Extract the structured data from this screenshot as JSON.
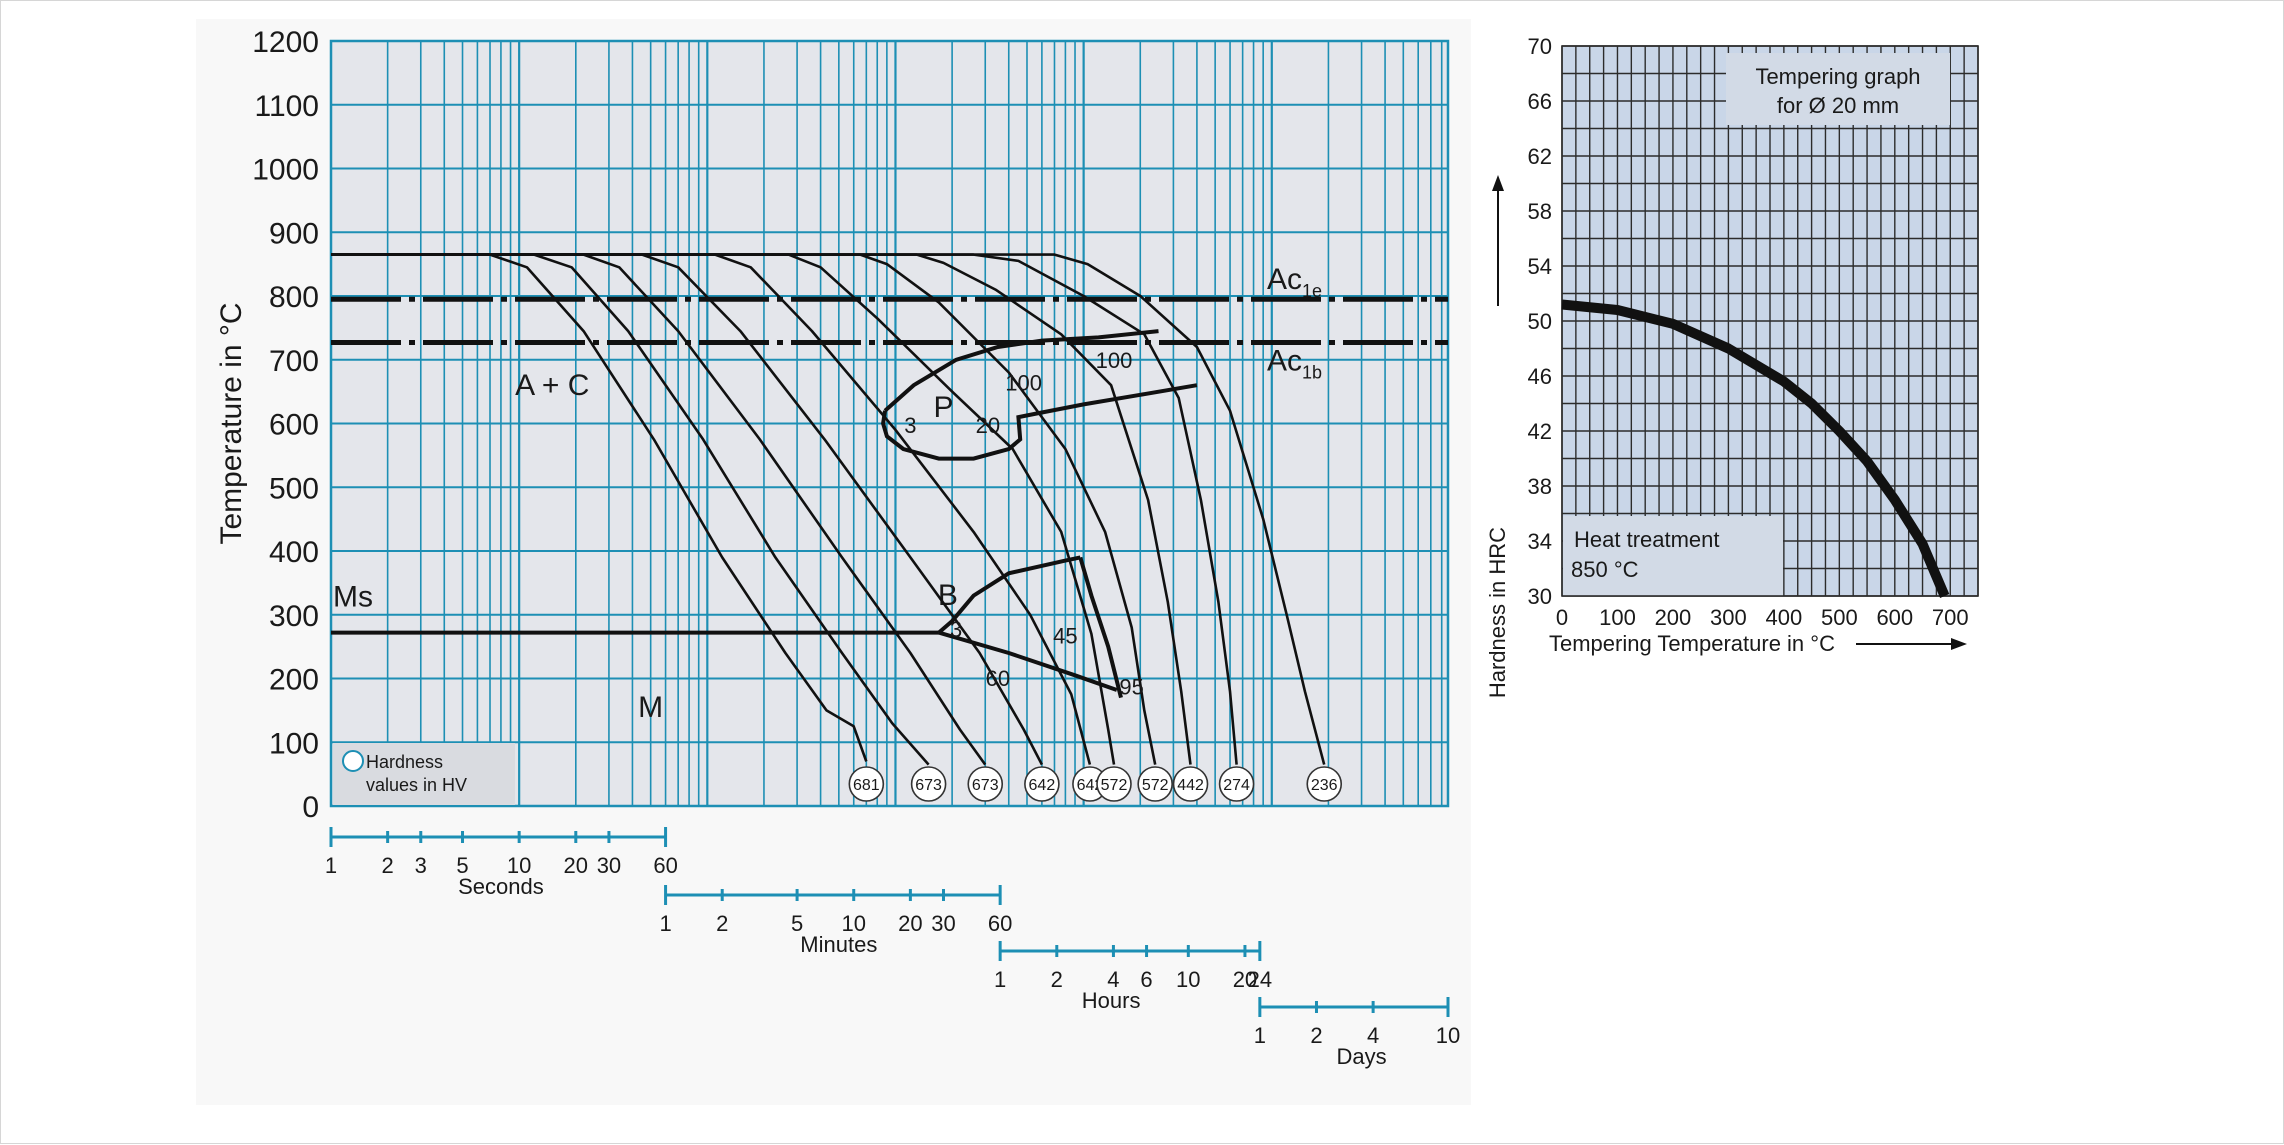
{
  "colors": {
    "plot_bg": "#e4e6eb",
    "grid": "#1d8fb4",
    "curve": "#111111",
    "right_bg": "#c9d6e8",
    "right_grid": "#2c2c2c",
    "label_box": "#d2dae6",
    "text": "#1a1a1a"
  },
  "chart_data": [
    {
      "type": "line",
      "title": "",
      "ylabel": "Temperature in °C",
      "ylim": [
        0,
        1200
      ],
      "y_ticks": [
        0,
        100,
        200,
        300,
        400,
        500,
        600,
        700,
        800,
        900,
        1000,
        1100,
        1200
      ],
      "x_scale": "log",
      "xlim_seconds": [
        1,
        864000
      ],
      "grid": true,
      "time_scales": [
        {
          "name": "Seconds",
          "ticks": [
            "1",
            "2",
            "3",
            "5",
            "10",
            "20",
            "30",
            "60"
          ],
          "values_s": [
            1,
            2,
            3,
            5,
            10,
            20,
            30,
            60
          ]
        },
        {
          "name": "Minutes",
          "ticks": [
            "1",
            "2",
            "5",
            "10",
            "20",
            "30",
            "60"
          ],
          "values_s": [
            60,
            120,
            300,
            600,
            1200,
            1800,
            3600
          ]
        },
        {
          "name": "Hours",
          "ticks": [
            "1",
            "2",
            "4",
            "6",
            "10",
            "20",
            "24"
          ],
          "values_s": [
            3600,
            7200,
            14400,
            21600,
            36000,
            72000,
            86400
          ]
        },
        {
          "name": "Days",
          "ticks": [
            "1",
            "2",
            "4",
            "10"
          ],
          "values_s": [
            86400,
            172800,
            345600,
            864000
          ]
        }
      ],
      "lines": [
        {
          "name": "Ac1e",
          "label": "Ac",
          "sub": "1e",
          "temperature": 795,
          "style": "dash-dot"
        },
        {
          "name": "Ac1b",
          "label": "Ac",
          "sub": "1b",
          "temperature": 727,
          "style": "dash-dot"
        },
        {
          "name": "Ms",
          "label": "Ms",
          "temperature": 272,
          "style": "solid"
        }
      ],
      "region_labels": [
        {
          "text": "A + C",
          "t_s": 15,
          "temperature": 645
        },
        {
          "text": "M",
          "t_s": 50,
          "temperature": 140
        },
        {
          "text": "P",
          "t_s": 1800,
          "temperature": 610
        },
        {
          "text": "B",
          "t_s": 1900,
          "temperature": 315
        }
      ],
      "pearlite_labels": [
        {
          "text": "3",
          "t_s": 1200,
          "temperature": 585
        },
        {
          "text": "20",
          "t_s": 3100,
          "temperature": 585
        },
        {
          "text": "100",
          "t_s": 4800,
          "temperature": 652
        },
        {
          "text": "100",
          "t_s": 14500,
          "temperature": 687
        }
      ],
      "bainite_labels": [
        {
          "text": "3",
          "t_s": 2100,
          "temperature": 265
        },
        {
          "text": "45",
          "t_s": 8000,
          "temperature": 255
        },
        {
          "text": "60",
          "t_s": 3500,
          "temperature": 188
        },
        {
          "text": "95",
          "t_s": 18000,
          "temperature": 175
        }
      ],
      "cooling_curves": [
        {
          "name": "curve-1",
          "hv": "681",
          "points": [
            [
              1,
              865
            ],
            [
              7,
              865
            ],
            [
              11,
              845
            ],
            [
              22,
              745
            ],
            [
              52,
              575
            ],
            [
              120,
              390
            ],
            [
              260,
              240
            ],
            [
              430,
              150
            ],
            [
              600,
              125
            ],
            [
              700,
              70
            ]
          ]
        },
        {
          "name": "curve-2",
          "hv": "673",
          "points": [
            [
              1,
              865
            ],
            [
              12,
              865
            ],
            [
              19,
              845
            ],
            [
              38,
              745
            ],
            [
              95,
              575
            ],
            [
              230,
              390
            ],
            [
              520,
              240
            ],
            [
              960,
              130
            ],
            [
              1500,
              65
            ]
          ]
        },
        {
          "name": "curve-3",
          "hv": "673",
          "points": [
            [
              1,
              865
            ],
            [
              22,
              865
            ],
            [
              34,
              845
            ],
            [
              70,
              745
            ],
            [
              190,
              575
            ],
            [
              520,
              390
            ],
            [
              1200,
              240
            ],
            [
              2200,
              120
            ],
            [
              3000,
              65
            ]
          ]
        },
        {
          "name": "curve-4",
          "hv": "642",
          "points": [
            [
              1,
              865
            ],
            [
              45,
              865
            ],
            [
              70,
              845
            ],
            [
              150,
              745
            ],
            [
              420,
              575
            ],
            [
              1200,
              390
            ],
            [
              2800,
              240
            ],
            [
              4800,
              120
            ],
            [
              6000,
              65
            ]
          ]
        },
        {
          "name": "curve-5",
          "hv": "642",
          "points": [
            [
              1,
              865
            ],
            [
              110,
              865
            ],
            [
              170,
              845
            ],
            [
              360,
              745
            ],
            [
              1000,
              590
            ],
            [
              2600,
              430
            ],
            [
              5200,
              300
            ],
            [
              8600,
              175
            ],
            [
              10800,
              65
            ]
          ]
        },
        {
          "name": "curve-6",
          "hv": "572",
          "points": [
            [
              1,
              865
            ],
            [
              270,
              865
            ],
            [
              400,
              845
            ],
            [
              800,
              765
            ],
            [
              2000,
              650
            ],
            [
              4200,
              560
            ],
            [
              7600,
              430
            ],
            [
              11000,
              270
            ],
            [
              13500,
              120
            ],
            [
              14500,
              65
            ]
          ]
        },
        {
          "name": "curve-7",
          "hv": "572",
          "points": [
            [
              1,
              865
            ],
            [
              650,
              865
            ],
            [
              900,
              850
            ],
            [
              1700,
              790
            ],
            [
              4000,
              680
            ],
            [
              8000,
              560
            ],
            [
              13000,
              430
            ],
            [
              18000,
              280
            ],
            [
              21000,
              150
            ],
            [
              24000,
              65
            ]
          ]
        },
        {
          "name": "curve-8",
          "hv": "442",
          "points": [
            [
              1,
              865
            ],
            [
              1300,
              865
            ],
            [
              1800,
              852
            ],
            [
              3400,
              810
            ],
            [
              7600,
              740
            ],
            [
              14000,
              660
            ],
            [
              22000,
              480
            ],
            [
              28000,
              320
            ],
            [
              33000,
              180
            ],
            [
              37000,
              65
            ]
          ]
        },
        {
          "name": "curve-9",
          "hv": "274",
          "points": [
            [
              1,
              865
            ],
            [
              2600,
              865
            ],
            [
              4500,
              855
            ],
            [
              10000,
              800
            ],
            [
              21000,
              740
            ],
            [
              32000,
              640
            ],
            [
              42000,
              480
            ],
            [
              52000,
              320
            ],
            [
              60000,
              180
            ],
            [
              65000,
              65
            ]
          ]
        },
        {
          "name": "curve-10",
          "hv": "236",
          "points": [
            [
              1,
              865
            ],
            [
              7000,
              865
            ],
            [
              10500,
              850
            ],
            [
              20000,
              800
            ],
            [
              40000,
              720
            ],
            [
              60000,
              620
            ],
            [
              90000,
              450
            ],
            [
              120000,
              300
            ],
            [
              150000,
              180
            ],
            [
              190000,
              65
            ]
          ]
        }
      ],
      "pearlite_region": {
        "nose": [
          [
            880,
            620
          ],
          [
            1250,
            660
          ],
          [
            2100,
            700
          ],
          [
            3500,
            720
          ],
          [
            6000,
            730
          ],
          [
            12000,
            735
          ],
          [
            25000,
            745
          ]
        ],
        "lower": [
          [
            880,
            620
          ],
          [
            860,
            600
          ],
          [
            900,
            580
          ],
          [
            1100,
            560
          ],
          [
            1700,
            545
          ],
          [
            2600,
            545
          ],
          [
            4000,
            560
          ],
          [
            4600,
            575
          ],
          [
            4500,
            610
          ],
          [
            5500,
            615
          ],
          [
            10000,
            630
          ],
          [
            20000,
            645
          ],
          [
            40000,
            660
          ]
        ]
      },
      "bainite_region": {
        "upper": [
          [
            1700,
            272
          ],
          [
            2000,
            290
          ],
          [
            2600,
            330
          ],
          [
            4000,
            365
          ],
          [
            8000,
            385
          ],
          [
            9600,
            390
          ]
        ],
        "right": [
          [
            9600,
            390
          ],
          [
            11000,
            330
          ],
          [
            13500,
            250
          ],
          [
            15800,
            170
          ]
        ],
        "lower": [
          [
            1700,
            272
          ],
          [
            4000,
            240
          ],
          [
            9000,
            205
          ],
          [
            15000,
            182
          ]
        ]
      },
      "hardness_legend": "Hardness values in HV",
      "hardness_legend_lines": [
        "Hardness",
        "values in HV"
      ]
    },
    {
      "type": "line",
      "title": "Tempering graph for Ø 20 mm",
      "title_lines": [
        "Tempering graph",
        "for Ø 20 mm"
      ],
      "xlabel": "Tempering Temperature in °C",
      "ylabel": "Hardness in HRC",
      "xlim": [
        0,
        750
      ],
      "ylim": [
        30,
        70
      ],
      "x_ticks": [
        0,
        100,
        200,
        300,
        400,
        500,
        600,
        700
      ],
      "y_ticks": [
        30,
        34,
        38,
        42,
        46,
        50,
        54,
        58,
        62,
        66,
        70
      ],
      "grid": true,
      "heat_treatment": [
        "Heat treatment",
        "850 °C"
      ],
      "series": [
        {
          "x": [
            0,
            100,
            200,
            300,
            400,
            450,
            500,
            550,
            600,
            650,
            690
          ],
          "y": [
            51.2,
            50.8,
            49.8,
            48.0,
            45.6,
            44.0,
            42.0,
            39.8,
            37.0,
            33.8,
            30.0
          ]
        }
      ]
    }
  ]
}
